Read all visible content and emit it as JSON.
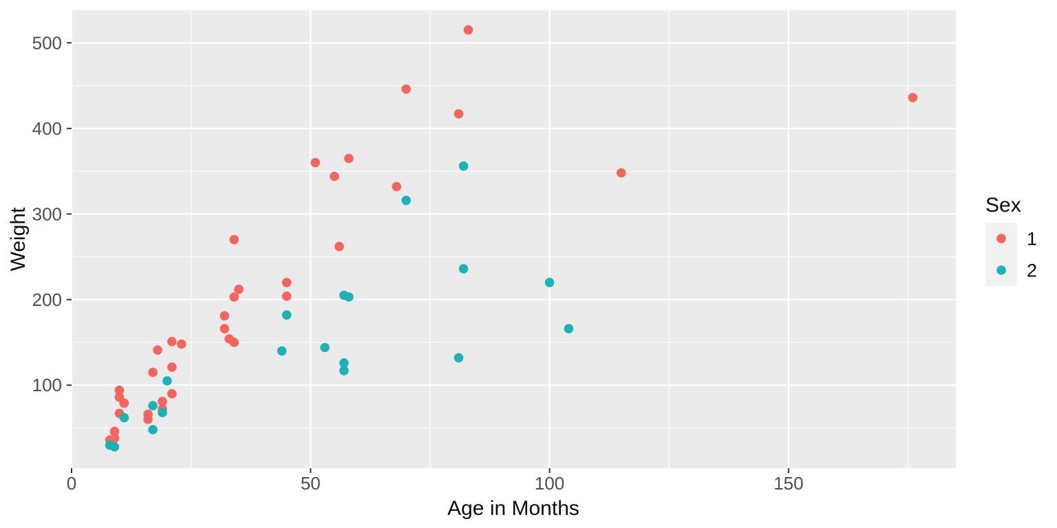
{
  "chart_data": {
    "type": "scatter",
    "title": "",
    "xlabel": "Age in Months",
    "ylabel": "Weight",
    "xlim": [
      0,
      185
    ],
    "ylim": [
      3,
      538
    ],
    "x_ticks": [
      0,
      50,
      100,
      150
    ],
    "x_minor_ticks": [
      25,
      75,
      125,
      175
    ],
    "y_ticks": [
      100,
      200,
      300,
      400,
      500
    ],
    "y_minor_ticks": [
      50,
      150,
      250,
      350,
      450
    ],
    "grid": "white major and minor gridlines on gray panel",
    "legend": {
      "title": "Sex",
      "position": "right"
    },
    "series": [
      {
        "name": "1",
        "color": "#F3655D",
        "points": [
          [
            8,
            36
          ],
          [
            9,
            38
          ],
          [
            9,
            46
          ],
          [
            10,
            67
          ],
          [
            10,
            86
          ],
          [
            10,
            94
          ],
          [
            11,
            79
          ],
          [
            16,
            60
          ],
          [
            16,
            66
          ],
          [
            17,
            115
          ],
          [
            18,
            141
          ],
          [
            19,
            72
          ],
          [
            19,
            81
          ],
          [
            21,
            90
          ],
          [
            21,
            121
          ],
          [
            21,
            151
          ],
          [
            23,
            148
          ],
          [
            32,
            166
          ],
          [
            32,
            181
          ],
          [
            33,
            154
          ],
          [
            34,
            150
          ],
          [
            34,
            203
          ],
          [
            34,
            270
          ],
          [
            35,
            212
          ],
          [
            45,
            204
          ],
          [
            45,
            220
          ],
          [
            51,
            360
          ],
          [
            55,
            344
          ],
          [
            56,
            262
          ],
          [
            58,
            365
          ],
          [
            68,
            332
          ],
          [
            70,
            446
          ],
          [
            81,
            417
          ],
          [
            83,
            515
          ],
          [
            115,
            348
          ],
          [
            176,
            436
          ]
        ]
      },
      {
        "name": "2",
        "color": "#1CB2B6",
        "points": [
          [
            8,
            30
          ],
          [
            9,
            28
          ],
          [
            11,
            62
          ],
          [
            17,
            48
          ],
          [
            17,
            76
          ],
          [
            19,
            68
          ],
          [
            20,
            105
          ],
          [
            44,
            140
          ],
          [
            45,
            182
          ],
          [
            53,
            144
          ],
          [
            57,
            117
          ],
          [
            57,
            126
          ],
          [
            57,
            205
          ],
          [
            58,
            203
          ],
          [
            70,
            316
          ],
          [
            81,
            132
          ],
          [
            82,
            236
          ],
          [
            82,
            356
          ],
          [
            100,
            220
          ],
          [
            104,
            166
          ]
        ]
      }
    ]
  },
  "colors": {
    "page_background": "#FFFFFF",
    "panel_background": "#EBEBEB",
    "gridline": "#FFFFFF",
    "tick_label": "#4D4D4D",
    "tick_mark": "#333333",
    "axis_title": "#0D0D0D",
    "legend_key_background": "#F1F1F1"
  }
}
